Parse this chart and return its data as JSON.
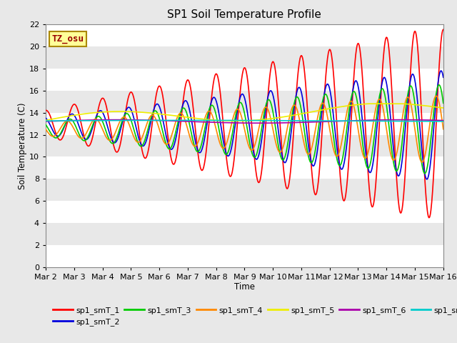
{
  "title": "SP1 Soil Temperature Profile",
  "xlabel": "Time",
  "ylabel": "Soil Temperature (C)",
  "ylim": [
    0,
    22
  ],
  "xlim": [
    0,
    14
  ],
  "fig_bg": "#e8e8e8",
  "plot_bg": "#e8e8e8",
  "band_colors": [
    "#ffffff",
    "#e8e8e8"
  ],
  "annotation_text": "TZ_osu",
  "annotation_color": "#990000",
  "annotation_bg": "#ffff99",
  "annotation_border": "#aa8800",
  "series_colors": {
    "sp1_smT_1": "#ff0000",
    "sp1_smT_2": "#0000dd",
    "sp1_smT_3": "#00cc00",
    "sp1_smT_4": "#ff8800",
    "sp1_smT_5": "#eeee00",
    "sp1_smT_6": "#aa00aa",
    "sp1_smT_7": "#00cccc"
  },
  "lw": 1.2,
  "xtick_labels": [
    "Mar 2",
    "Mar 3",
    "Mar 4",
    "Mar 5",
    "Mar 6",
    "Mar 7",
    "Mar 8",
    "Mar 9",
    "Mar 10",
    "Mar 11",
    "Mar 12",
    "Mar 13",
    "Mar 14",
    "Mar 15",
    "Mar 16"
  ],
  "xtick_positions": [
    0,
    1,
    2,
    3,
    4,
    5,
    6,
    7,
    8,
    9,
    10,
    11,
    12,
    13,
    14
  ],
  "ytick_positions": [
    0,
    2,
    4,
    6,
    8,
    10,
    12,
    14,
    16,
    18,
    20,
    22
  ]
}
